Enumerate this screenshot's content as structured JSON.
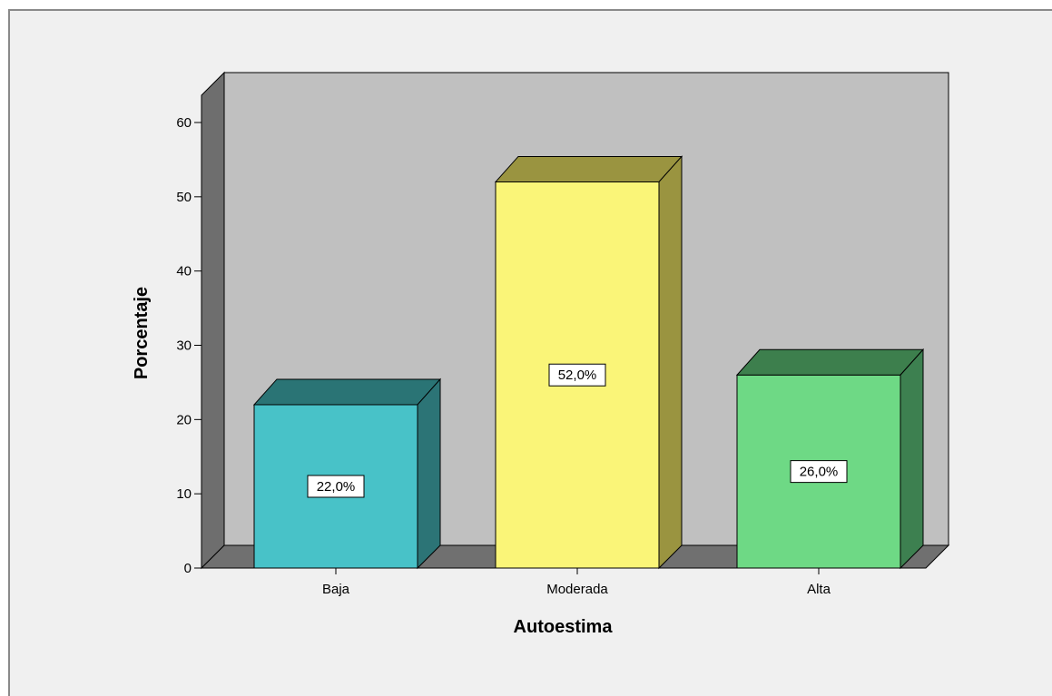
{
  "chart_data": {
    "type": "bar",
    "categories": [
      "Baja",
      "Moderada",
      "Alta"
    ],
    "values": [
      22.0,
      52.0,
      26.0
    ],
    "data_labels": [
      "22,0%",
      "52,0%",
      "26,0%"
    ],
    "xlabel": "Autoestima",
    "ylabel": "Porcentaje",
    "ylim": [
      0,
      60
    ],
    "yticks": [
      "0",
      "10",
      "20",
      "30",
      "40",
      "50",
      "60"
    ],
    "style": "3d",
    "grid": false,
    "colors": {
      "back_wall": "#c0c0c0",
      "floor": "#707070",
      "left_wall": "#6e6e6e",
      "bars": [
        {
          "front": "#48c2c8",
          "top": "#2a7475",
          "side": "#2c7476"
        },
        {
          "front": "#faf578",
          "top": "#9a9440",
          "side": "#9a9440"
        },
        {
          "front": "#6ed985",
          "top": "#3d7f4d",
          "side": "#3d8050"
        }
      ]
    }
  }
}
